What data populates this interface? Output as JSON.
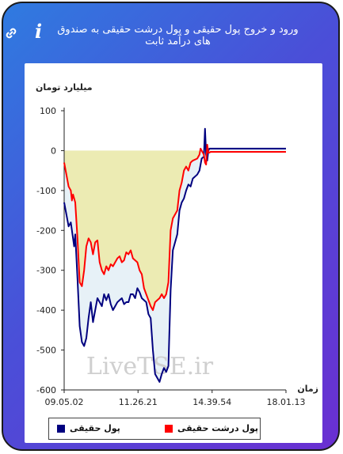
{
  "header": {
    "title": "ورود و خروج پول حقیقی و پول درشت حقیقی به صندوق های درآمد ثابت"
  },
  "chart_data": {
    "type": "line",
    "ylabel": "میلیارد تومان",
    "xlabel": "زمان",
    "ylim": [
      -600,
      100
    ],
    "yticks": [
      100,
      0,
      -100,
      -200,
      -300,
      -400,
      -500,
      -600
    ],
    "ytick_labels": [
      "100",
      "0",
      "-100",
      "-200",
      "-300",
      "-400",
      "-500",
      "-600"
    ],
    "xticks": [
      0,
      0.333,
      0.667,
      1.0
    ],
    "xtick_labels": [
      "09.05.02",
      "11.26.21",
      "14.39.54",
      "18.01.13"
    ],
    "watermark": "LiveTSE.ir",
    "series": [
      {
        "name": "پول حقیقی",
        "color": "#00007f",
        "points": [
          [
            0.0,
            -130
          ],
          [
            0.01,
            -160
          ],
          [
            0.02,
            -190
          ],
          [
            0.03,
            -180
          ],
          [
            0.04,
            -220
          ],
          [
            0.045,
            -240
          ],
          [
            0.05,
            -210
          ],
          [
            0.06,
            -320
          ],
          [
            0.07,
            -440
          ],
          [
            0.08,
            -480
          ],
          [
            0.09,
            -490
          ],
          [
            0.1,
            -470
          ],
          [
            0.11,
            -420
          ],
          [
            0.12,
            -380
          ],
          [
            0.13,
            -430
          ],
          [
            0.14,
            -400
          ],
          [
            0.15,
            -370
          ],
          [
            0.16,
            -380
          ],
          [
            0.17,
            -390
          ],
          [
            0.18,
            -360
          ],
          [
            0.19,
            -375
          ],
          [
            0.2,
            -360
          ],
          [
            0.21,
            -385
          ],
          [
            0.22,
            -400
          ],
          [
            0.23,
            -390
          ],
          [
            0.24,
            -380
          ],
          [
            0.25,
            -375
          ],
          [
            0.26,
            -370
          ],
          [
            0.27,
            -385
          ],
          [
            0.28,
            -380
          ],
          [
            0.29,
            -380
          ],
          [
            0.3,
            -360
          ],
          [
            0.31,
            -360
          ],
          [
            0.32,
            -370
          ],
          [
            0.33,
            -345
          ],
          [
            0.34,
            -355
          ],
          [
            0.35,
            -370
          ],
          [
            0.36,
            -375
          ],
          [
            0.37,
            -380
          ],
          [
            0.38,
            -410
          ],
          [
            0.39,
            -420
          ],
          [
            0.4,
            -500
          ],
          [
            0.41,
            -560
          ],
          [
            0.42,
            -570
          ],
          [
            0.43,
            -580
          ],
          [
            0.44,
            -560
          ],
          [
            0.45,
            -545
          ],
          [
            0.46,
            -555
          ],
          [
            0.47,
            -540
          ],
          [
            0.48,
            -350
          ],
          [
            0.49,
            -250
          ],
          [
            0.5,
            -230
          ],
          [
            0.51,
            -210
          ],
          [
            0.52,
            -150
          ],
          [
            0.53,
            -130
          ],
          [
            0.54,
            -120
          ],
          [
            0.55,
            -100
          ],
          [
            0.56,
            -85
          ],
          [
            0.57,
            -90
          ],
          [
            0.58,
            -70
          ],
          [
            0.6,
            -60
          ],
          [
            0.61,
            -50
          ],
          [
            0.62,
            -20
          ],
          [
            0.63,
            -15
          ],
          [
            0.635,
            55
          ],
          [
            0.64,
            -10
          ],
          [
            0.645,
            -25
          ],
          [
            0.65,
            0
          ],
          [
            0.655,
            5
          ],
          [
            0.66,
            5
          ],
          [
            0.67,
            5
          ],
          [
            0.8,
            5
          ],
          [
            1.0,
            5
          ]
        ]
      },
      {
        "name": "پول درشت حقیقی",
        "color": "#ff0000",
        "points": [
          [
            0.0,
            -30
          ],
          [
            0.01,
            -60
          ],
          [
            0.02,
            -90
          ],
          [
            0.03,
            -100
          ],
          [
            0.035,
            -125
          ],
          [
            0.04,
            -110
          ],
          [
            0.05,
            -130
          ],
          [
            0.06,
            -220
          ],
          [
            0.07,
            -330
          ],
          [
            0.08,
            -340
          ],
          [
            0.09,
            -300
          ],
          [
            0.1,
            -240
          ],
          [
            0.11,
            -220
          ],
          [
            0.12,
            -230
          ],
          [
            0.13,
            -260
          ],
          [
            0.14,
            -230
          ],
          [
            0.15,
            -225
          ],
          [
            0.16,
            -280
          ],
          [
            0.17,
            -300
          ],
          [
            0.18,
            -310
          ],
          [
            0.19,
            -290
          ],
          [
            0.2,
            -300
          ],
          [
            0.21,
            -285
          ],
          [
            0.22,
            -290
          ],
          [
            0.23,
            -280
          ],
          [
            0.24,
            -270
          ],
          [
            0.25,
            -265
          ],
          [
            0.26,
            -280
          ],
          [
            0.27,
            -275
          ],
          [
            0.28,
            -255
          ],
          [
            0.29,
            -260
          ],
          [
            0.3,
            -250
          ],
          [
            0.31,
            -270
          ],
          [
            0.32,
            -275
          ],
          [
            0.33,
            -280
          ],
          [
            0.34,
            -300
          ],
          [
            0.35,
            -310
          ],
          [
            0.36,
            -345
          ],
          [
            0.37,
            -360
          ],
          [
            0.38,
            -375
          ],
          [
            0.39,
            -390
          ],
          [
            0.4,
            -400
          ],
          [
            0.41,
            -380
          ],
          [
            0.42,
            -375
          ],
          [
            0.43,
            -370
          ],
          [
            0.44,
            -360
          ],
          [
            0.45,
            -370
          ],
          [
            0.46,
            -360
          ],
          [
            0.47,
            -330
          ],
          [
            0.48,
            -200
          ],
          [
            0.49,
            -170
          ],
          [
            0.5,
            -160
          ],
          [
            0.51,
            -150
          ],
          [
            0.52,
            -100
          ],
          [
            0.53,
            -80
          ],
          [
            0.54,
            -50
          ],
          [
            0.55,
            -40
          ],
          [
            0.56,
            -50
          ],
          [
            0.57,
            -30
          ],
          [
            0.58,
            -25
          ],
          [
            0.6,
            -20
          ],
          [
            0.61,
            -10
          ],
          [
            0.615,
            5
          ],
          [
            0.62,
            0
          ],
          [
            0.63,
            -10
          ],
          [
            0.635,
            -30
          ],
          [
            0.64,
            -35
          ],
          [
            0.645,
            15
          ],
          [
            0.65,
            -5
          ],
          [
            0.655,
            -5
          ],
          [
            0.66,
            -3
          ],
          [
            0.67,
            -3
          ],
          [
            0.8,
            -3
          ],
          [
            1.0,
            -3
          ]
        ]
      }
    ],
    "fills": {
      "below_zero_color": "#ecebb3",
      "between_color": "#e7f1f7"
    },
    "legend_position": "bottom",
    "grid": false
  },
  "legend": {
    "real_money": "پول حقیقی",
    "big_real_money": "پول درشت حقیقی"
  }
}
